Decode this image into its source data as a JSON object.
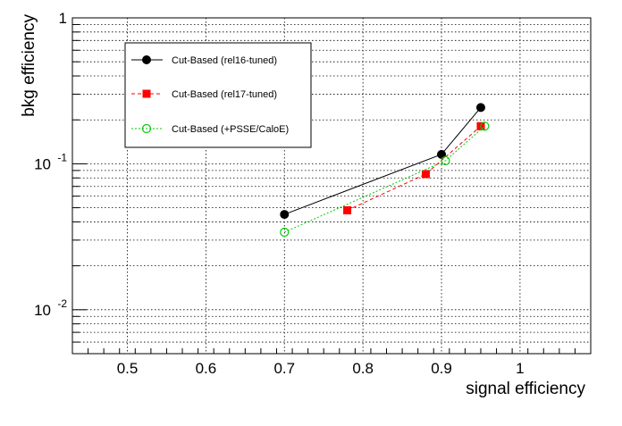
{
  "chart_data": {
    "type": "line",
    "xlabel": "signal efficiency",
    "ylabel": "bkg efficiency",
    "x_scale": "linear",
    "y_scale": "log",
    "xlim": [
      0.43,
      1.09
    ],
    "ylim": [
      0.005,
      1
    ],
    "grid": true,
    "legend_placement": "top-left",
    "x_ticks": [
      {
        "value": 0.5,
        "label": "0.5"
      },
      {
        "value": 0.6,
        "label": "0.6"
      },
      {
        "value": 0.7,
        "label": "0.7"
      },
      {
        "value": 0.8,
        "label": "0.8"
      },
      {
        "value": 0.9,
        "label": "0.9"
      },
      {
        "value": 1.0,
        "label": "1"
      }
    ],
    "y_ticks": [
      {
        "value": 1,
        "base": "1",
        "exp": ""
      },
      {
        "value": 0.1,
        "base": "10",
        "exp": "-1"
      },
      {
        "value": 0.01,
        "base": "10",
        "exp": "-2"
      }
    ],
    "series": [
      {
        "name": "Cut-Based (rel16-tuned)",
        "color": "#000000",
        "marker": "filled-circle",
        "line": "solid",
        "points": [
          [
            0.7,
            0.045
          ],
          [
            0.9,
            0.116
          ],
          [
            0.95,
            0.243
          ]
        ]
      },
      {
        "name": "Cut-Based (rel17-tuned)",
        "color": "#ff0000",
        "marker": "filled-square",
        "line": "dashed",
        "points": [
          [
            0.78,
            0.048
          ],
          [
            0.88,
            0.085
          ],
          [
            0.95,
            0.181
          ]
        ]
      },
      {
        "name": "Cut-Based (+PSSE/CaloE)",
        "color": "#00cc00",
        "marker": "open-circle",
        "line": "dotted",
        "points": [
          [
            0.7,
            0.034
          ],
          [
            0.905,
            0.105
          ],
          [
            0.955,
            0.181
          ]
        ]
      }
    ]
  }
}
